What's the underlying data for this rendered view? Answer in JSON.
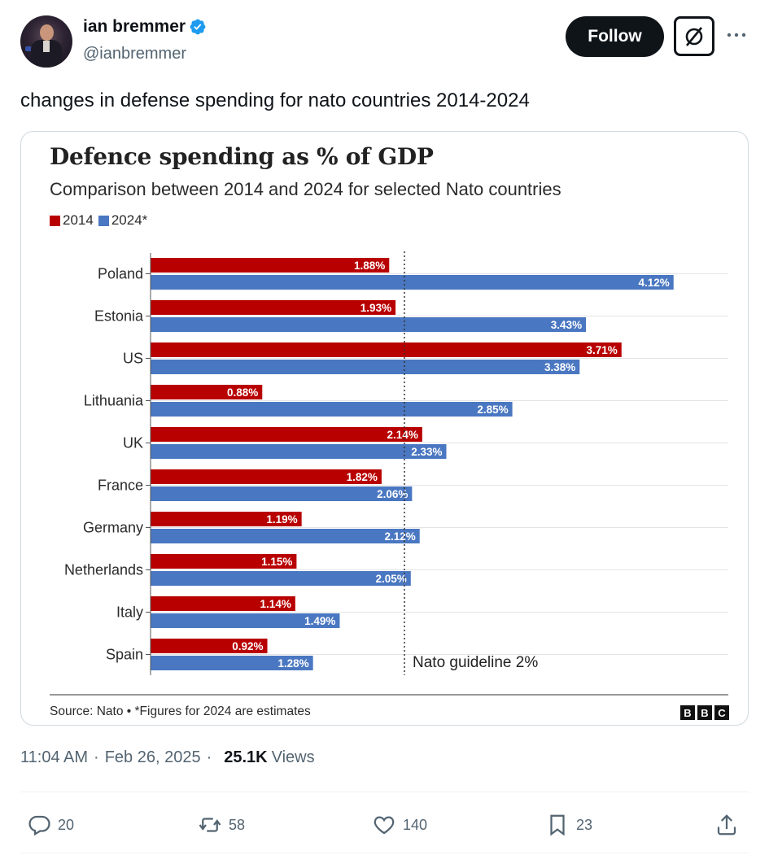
{
  "author": {
    "name": "ian bremmer",
    "handle": "@ianbremmer"
  },
  "actions_top": {
    "follow_label": "Follow"
  },
  "tweet": {
    "text": "changes in defense spending for nato countries 2014-2024",
    "time": "11:04 AM",
    "date": "Feb 26, 2025",
    "views_count": "25.1K",
    "views_label": "Views"
  },
  "engagement": {
    "replies": "20",
    "retweets": "58",
    "likes": "140",
    "bookmarks": "23"
  },
  "colors": {
    "series_2014": "#b80000",
    "series_2024": "#4a77c1",
    "follow_bg": "#0f1419",
    "verified": "#1d9bf0"
  },
  "chart_data": {
    "type": "bar",
    "orientation": "horizontal",
    "title": "Defence spending as % of GDP",
    "subtitle": "Comparison between 2014 and 2024 for selected Nato countries",
    "categories": [
      "Poland",
      "Estonia",
      "US",
      "Lithuania",
      "UK",
      "France",
      "Germany",
      "Netherlands",
      "Italy",
      "Spain"
    ],
    "series": [
      {
        "name": "2014",
        "values": [
          1.88,
          1.93,
          3.71,
          0.88,
          2.14,
          1.82,
          1.19,
          1.15,
          1.14,
          0.92
        ]
      },
      {
        "name": "2024*",
        "values": [
          4.12,
          3.43,
          3.38,
          2.85,
          2.33,
          2.06,
          2.12,
          2.05,
          1.49,
          1.28
        ]
      }
    ],
    "value_labels_2014": [
      "1.88%",
      "1.93%",
      "3.71%",
      "0.88%",
      "2.14%",
      "1.82%",
      "1.19%",
      "1.15%",
      "1.14%",
      "0.92%"
    ],
    "value_labels_2024": [
      "4.12%",
      "3.43%",
      "3.38%",
      "2.85%",
      "2.33%",
      "2.06%",
      "2.12%",
      "2.05%",
      "1.49%",
      "1.28%"
    ],
    "reference_line": {
      "value": 2,
      "label": "Nato guideline 2%"
    },
    "xlim": [
      0,
      4.5
    ],
    "legend_position": "top-left",
    "grid": true,
    "source": "Source: Nato • *Figures for 2024 are estimates",
    "logo_text": "BBC"
  }
}
